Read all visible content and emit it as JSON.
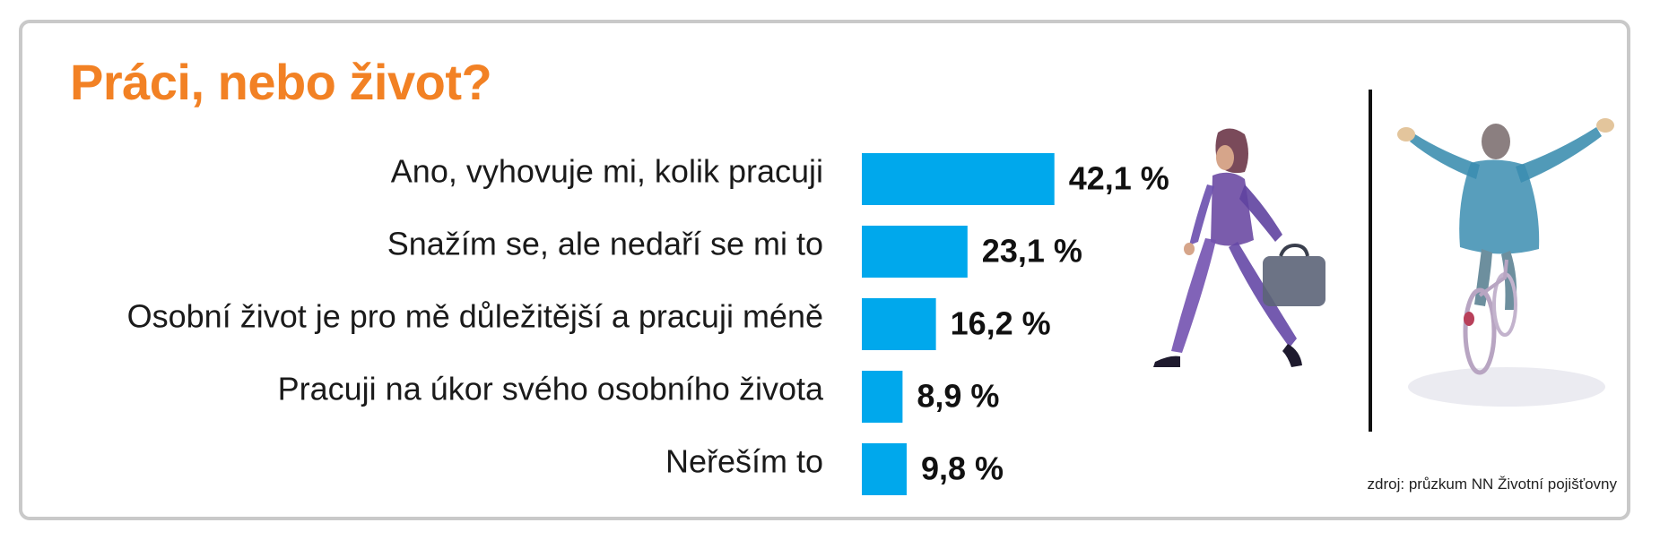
{
  "title": "Práci, nebo život?",
  "source": "zdroj: průzkum NN Životní pojišťovny",
  "colors": {
    "title": "#f28124",
    "bar": "#00a8ec",
    "frame": "#c9c9c9"
  },
  "chart_data": {
    "type": "bar",
    "orientation": "horizontal",
    "title": "Práci, nebo život?",
    "categories": [
      "Ano, vyhovuje mi, kolik pracuji",
      "Snažím se, ale nedaří se mi to",
      "Osobní život je pro mě důležitější a pracuji méně",
      "Pracuji na úkor svého osobního života",
      "Neřeším to"
    ],
    "values": [
      42.1,
      23.1,
      16.2,
      8.9,
      9.8
    ],
    "value_labels": [
      "42,1 %",
      "23,1 %",
      "16,2 %",
      "8,9 %",
      "9,8 %"
    ],
    "unit": "%",
    "grid": false,
    "legend": "none"
  },
  "illustrations": {
    "left": "woman-with-briefcase-illustration",
    "right": "man-on-bicycle-illustration",
    "divider": "vertical-divider"
  }
}
